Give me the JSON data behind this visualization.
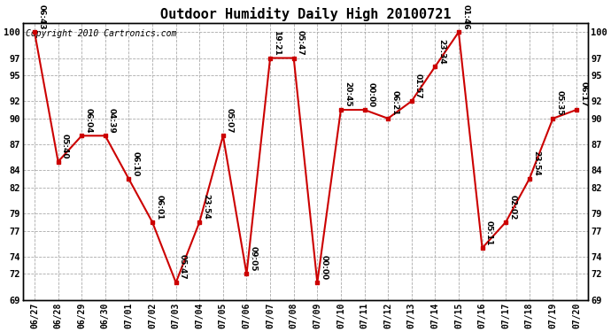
{
  "title": "Outdoor Humidity Daily High 20100721",
  "copyright": "Copyright 2010 Cartronics.com",
  "x_labels": [
    "06/27",
    "06/28",
    "06/29",
    "06/30",
    "07/01",
    "07/02",
    "07/03",
    "07/04",
    "07/05",
    "07/06",
    "07/07",
    "07/08",
    "07/09",
    "07/10",
    "07/11",
    "07/12",
    "07/13",
    "07/14",
    "07/15",
    "07/16",
    "07/17",
    "07/18",
    "07/19",
    "07/20"
  ],
  "y_values": [
    100,
    85,
    88,
    88,
    83,
    78,
    71,
    78,
    88,
    72,
    97,
    97,
    71,
    91,
    91,
    90,
    92,
    96,
    100,
    75,
    78,
    83,
    90,
    91
  ],
  "annotations": [
    "06:43",
    "05:40",
    "06:04",
    "04:39",
    "06:10",
    "06:01",
    "05:47",
    "23:54",
    "05:07",
    "09:05",
    "19:21",
    "05:47",
    "00:00",
    "20:45",
    "00:00",
    "06:21",
    "01:57",
    "23:34",
    "01:46",
    "05:11",
    "02:02",
    "23:54",
    "05:35",
    "06:17"
  ],
  "ylim": [
    69,
    101
  ],
  "yticks": [
    69,
    72,
    74,
    77,
    79,
    82,
    84,
    87,
    90,
    92,
    95,
    97,
    100
  ],
  "line_color": "#cc0000",
  "marker_color": "#cc0000",
  "bg_color": "#ffffff",
  "grid_color": "#aaaaaa",
  "title_fontsize": 11,
  "annotation_fontsize": 6.5,
  "copyright_fontsize": 7,
  "xlabel_fontsize": 7,
  "ylabel_fontsize": 7.5
}
